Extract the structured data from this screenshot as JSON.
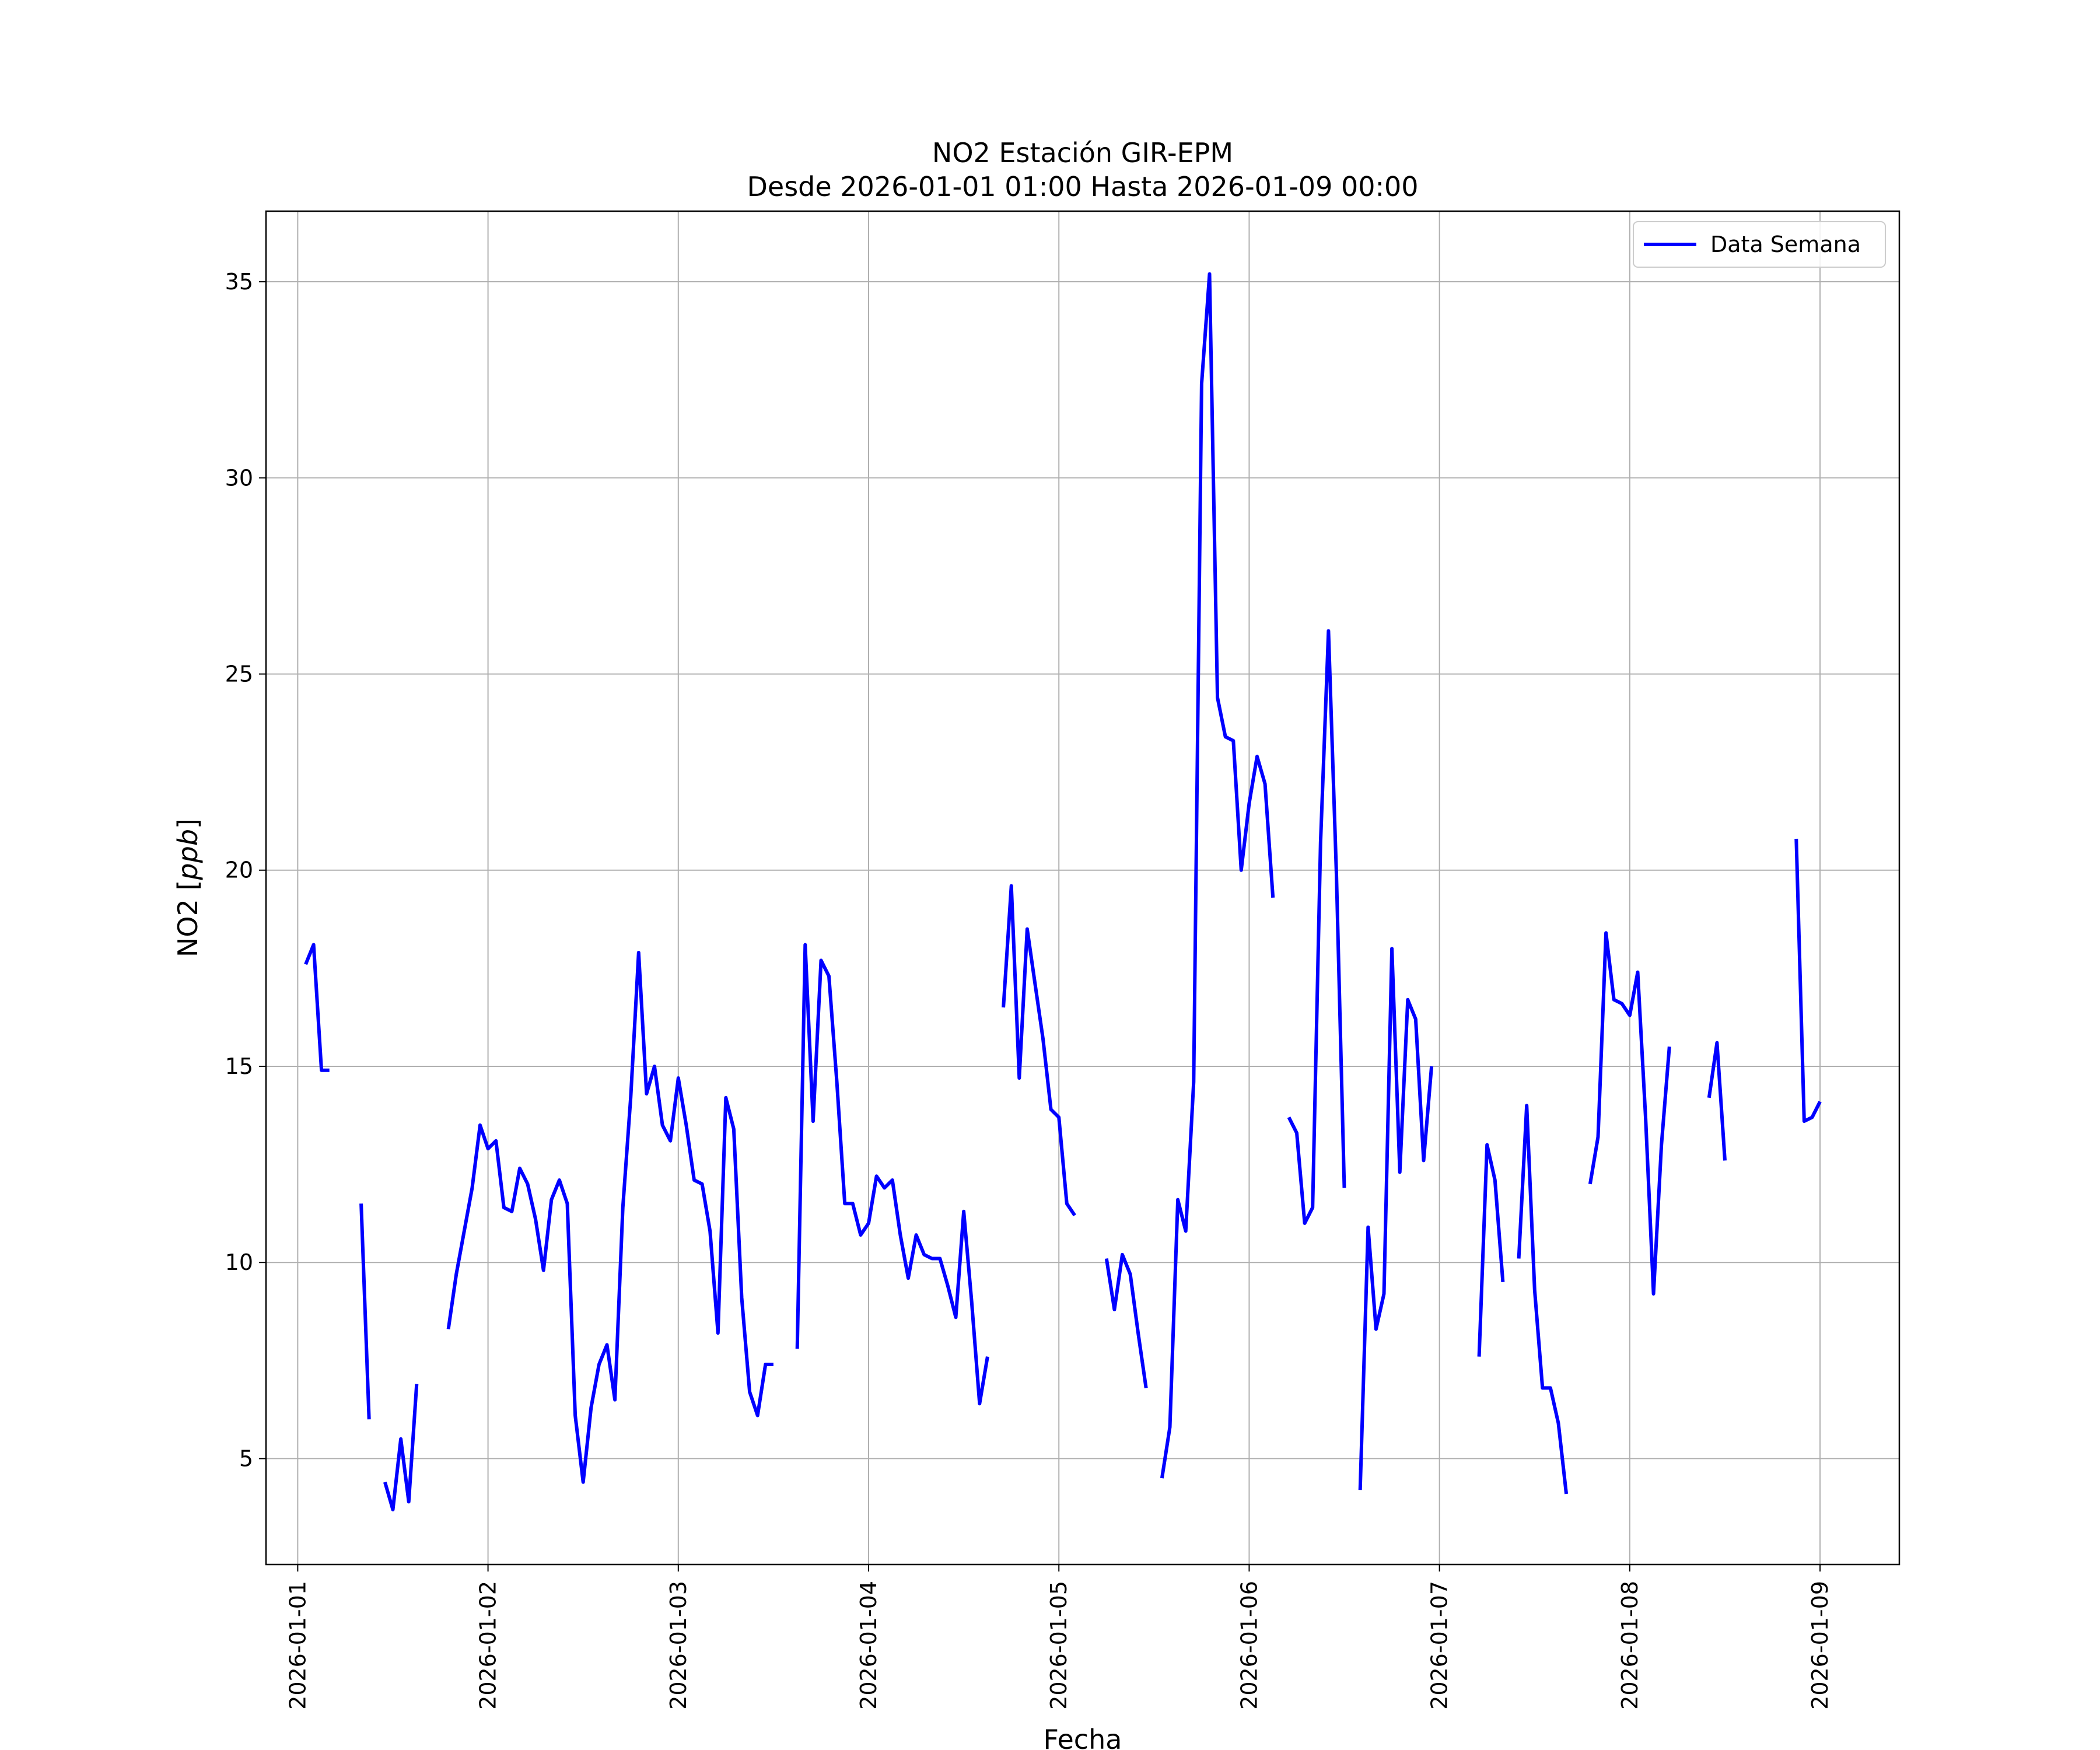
{
  "chart_data": {
    "type": "line",
    "title": "NO2 Estación GIR-EPM",
    "subtitle": "Desde 2026-01-01 01:00 Hasta 2026-01-09 00:00",
    "xlabel": "Fecha",
    "ylabel_main": "NO2 [",
    "ylabel_unit": "ppb",
    "ylabel_close": "]",
    "x_range": [
      "2025-12-31T20:00",
      "2026-01-09T10:00"
    ],
    "ylim": [
      2.3,
      36.8
    ],
    "x_ticks": [
      "2026-01-01",
      "2026-01-02",
      "2026-01-03",
      "2026-01-04",
      "2026-01-05",
      "2026-01-06",
      "2026-01-07",
      "2026-01-08",
      "2026-01-09"
    ],
    "y_ticks": [
      5,
      10,
      15,
      20,
      25,
      30,
      35
    ],
    "grid": true,
    "legend_position": "top-right",
    "series": [
      {
        "name": "Data Semana",
        "color": "#0000ff",
        "points": [
          [
            "2026-01-01T01:00",
            17.6
          ],
          [
            "2026-01-01T02:00",
            18.1
          ],
          [
            "2026-01-01T03:00",
            14.9
          ],
          [
            "2026-01-01T04:00",
            14.9
          ],
          [
            "2026-01-01T05:00",
            null
          ],
          [
            "2026-01-01T06:00",
            null
          ],
          [
            "2026-01-01T07:00",
            null
          ],
          [
            "2026-01-01T08:00",
            11.5
          ],
          [
            "2026-01-01T09:00",
            6.0
          ],
          [
            "2026-01-01T10:00",
            null
          ],
          [
            "2026-01-01T11:00",
            4.4
          ],
          [
            "2026-01-01T12:00",
            3.7
          ],
          [
            "2026-01-01T13:00",
            5.5
          ],
          [
            "2026-01-01T14:00",
            3.9
          ],
          [
            "2026-01-01T15:00",
            6.9
          ],
          [
            "2026-01-01T16:00",
            null
          ],
          [
            "2026-01-01T17:00",
            null
          ],
          [
            "2026-01-01T18:00",
            null
          ],
          [
            "2026-01-01T19:00",
            8.3
          ],
          [
            "2026-01-01T20:00",
            9.7
          ],
          [
            "2026-01-01T21:00",
            10.8
          ],
          [
            "2026-01-01T22:00",
            11.9
          ],
          [
            "2026-01-01T23:00",
            13.5
          ],
          [
            "2026-01-02T00:00",
            12.9
          ],
          [
            "2026-01-02T01:00",
            13.1
          ],
          [
            "2026-01-02T02:00",
            11.4
          ],
          [
            "2026-01-02T03:00",
            11.3
          ],
          [
            "2026-01-02T04:00",
            12.4
          ],
          [
            "2026-01-02T05:00",
            12.0
          ],
          [
            "2026-01-02T06:00",
            11.1
          ],
          [
            "2026-01-02T07:00",
            9.8
          ],
          [
            "2026-01-02T08:00",
            11.6
          ],
          [
            "2026-01-02T09:00",
            12.1
          ],
          [
            "2026-01-02T10:00",
            11.5
          ],
          [
            "2026-01-02T11:00",
            6.1
          ],
          [
            "2026-01-02T12:00",
            4.4
          ],
          [
            "2026-01-02T13:00",
            6.3
          ],
          [
            "2026-01-02T14:00",
            7.4
          ],
          [
            "2026-01-02T15:00",
            7.9
          ],
          [
            "2026-01-02T16:00",
            6.5
          ],
          [
            "2026-01-02T17:00",
            11.4
          ],
          [
            "2026-01-02T18:00",
            14.2
          ],
          [
            "2026-01-02T19:00",
            17.9
          ],
          [
            "2026-01-02T20:00",
            14.3
          ],
          [
            "2026-01-02T21:00",
            15.0
          ],
          [
            "2026-01-02T22:00",
            13.5
          ],
          [
            "2026-01-02T23:00",
            13.1
          ],
          [
            "2026-01-03T00:00",
            14.7
          ],
          [
            "2026-01-03T01:00",
            13.5
          ],
          [
            "2026-01-03T02:00",
            12.1
          ],
          [
            "2026-01-03T03:00",
            12.0
          ],
          [
            "2026-01-03T04:00",
            10.8
          ],
          [
            "2026-01-03T05:00",
            8.2
          ],
          [
            "2026-01-03T06:00",
            14.2
          ],
          [
            "2026-01-03T07:00",
            13.4
          ],
          [
            "2026-01-03T08:00",
            9.1
          ],
          [
            "2026-01-03T09:00",
            6.7
          ],
          [
            "2026-01-03T10:00",
            6.1
          ],
          [
            "2026-01-03T11:00",
            7.4
          ],
          [
            "2026-01-03T12:00",
            7.4
          ],
          [
            "2026-01-03T13:00",
            null
          ],
          [
            "2026-01-03T14:00",
            null
          ],
          [
            "2026-01-03T15:00",
            7.8
          ],
          [
            "2026-01-03T16:00",
            18.1
          ],
          [
            "2026-01-03T17:00",
            13.6
          ],
          [
            "2026-01-03T18:00",
            17.7
          ],
          [
            "2026-01-03T19:00",
            17.3
          ],
          [
            "2026-01-03T20:00",
            14.6
          ],
          [
            "2026-01-03T21:00",
            11.5
          ],
          [
            "2026-01-03T22:00",
            11.5
          ],
          [
            "2026-01-03T23:00",
            10.7
          ],
          [
            "2026-01-04T00:00",
            11.0
          ],
          [
            "2026-01-04T01:00",
            12.2
          ],
          [
            "2026-01-04T02:00",
            11.9
          ],
          [
            "2026-01-04T03:00",
            12.1
          ],
          [
            "2026-01-04T04:00",
            10.7
          ],
          [
            "2026-01-04T05:00",
            9.6
          ],
          [
            "2026-01-04T06:00",
            10.7
          ],
          [
            "2026-01-04T07:00",
            10.2
          ],
          [
            "2026-01-04T08:00",
            10.1
          ],
          [
            "2026-01-04T09:00",
            10.1
          ],
          [
            "2026-01-04T10:00",
            9.4
          ],
          [
            "2026-01-04T11:00",
            8.6
          ],
          [
            "2026-01-04T12:00",
            11.3
          ],
          [
            "2026-01-04T13:00",
            9.0
          ],
          [
            "2026-01-04T14:00",
            6.4
          ],
          [
            "2026-01-04T15:00",
            7.6
          ],
          [
            "2026-01-04T16:00",
            null
          ],
          [
            "2026-01-04T17:00",
            16.5
          ],
          [
            "2026-01-04T18:00",
            19.6
          ],
          [
            "2026-01-04T19:00",
            14.7
          ],
          [
            "2026-01-04T20:00",
            18.5
          ],
          [
            "2026-01-04T21:00",
            17.1
          ],
          [
            "2026-01-04T22:00",
            15.7
          ],
          [
            "2026-01-04T23:00",
            13.9
          ],
          [
            "2026-01-05T00:00",
            13.7
          ],
          [
            "2026-01-05T01:00",
            11.5
          ],
          [
            "2026-01-05T02:00",
            11.2
          ],
          [
            "2026-01-05T03:00",
            null
          ],
          [
            "2026-01-05T04:00",
            null
          ],
          [
            "2026-01-05T05:00",
            null
          ],
          [
            "2026-01-05T06:00",
            10.1
          ],
          [
            "2026-01-05T07:00",
            8.8
          ],
          [
            "2026-01-05T08:00",
            10.2
          ],
          [
            "2026-01-05T09:00",
            9.7
          ],
          [
            "2026-01-05T10:00",
            8.2
          ],
          [
            "2026-01-05T11:00",
            6.8
          ],
          [
            "2026-01-05T12:00",
            null
          ],
          [
            "2026-01-05T13:00",
            4.5
          ],
          [
            "2026-01-05T14:00",
            5.8
          ],
          [
            "2026-01-05T15:00",
            11.6
          ],
          [
            "2026-01-05T16:00",
            10.8
          ],
          [
            "2026-01-05T17:00",
            14.6
          ],
          [
            "2026-01-05T18:00",
            32.4
          ],
          [
            "2026-01-05T19:00",
            35.2
          ],
          [
            "2026-01-05T20:00",
            24.4
          ],
          [
            "2026-01-05T21:00",
            23.4
          ],
          [
            "2026-01-05T22:00",
            23.3
          ],
          [
            "2026-01-05T23:00",
            20.0
          ],
          [
            "2026-01-06T00:00",
            21.7
          ],
          [
            "2026-01-06T01:00",
            22.9
          ],
          [
            "2026-01-06T02:00",
            22.2
          ],
          [
            "2026-01-06T03:00",
            19.3
          ],
          [
            "2026-01-06T04:00",
            null
          ],
          [
            "2026-01-06T05:00",
            13.7
          ],
          [
            "2026-01-06T06:00",
            13.3
          ],
          [
            "2026-01-06T07:00",
            11.0
          ],
          [
            "2026-01-06T08:00",
            11.4
          ],
          [
            "2026-01-06T09:00",
            20.7
          ],
          [
            "2026-01-06T10:00",
            26.1
          ],
          [
            "2026-01-06T11:00",
            19.9
          ],
          [
            "2026-01-06T12:00",
            11.9
          ],
          [
            "2026-01-06T13:00",
            null
          ],
          [
            "2026-01-06T14:00",
            4.2
          ],
          [
            "2026-01-06T15:00",
            10.9
          ],
          [
            "2026-01-06T16:00",
            8.3
          ],
          [
            "2026-01-06T17:00",
            9.2
          ],
          [
            "2026-01-06T18:00",
            18.0
          ],
          [
            "2026-01-06T19:00",
            12.3
          ],
          [
            "2026-01-06T20:00",
            16.7
          ],
          [
            "2026-01-06T21:00",
            16.2
          ],
          [
            "2026-01-06T22:00",
            12.6
          ],
          [
            "2026-01-06T23:00",
            15.0
          ],
          [
            "2026-01-07T00:00",
            null
          ],
          [
            "2026-01-07T01:00",
            null
          ],
          [
            "2026-01-07T02:00",
            null
          ],
          [
            "2026-01-07T03:00",
            null
          ],
          [
            "2026-01-07T04:00",
            null
          ],
          [
            "2026-01-07T05:00",
            7.6
          ],
          [
            "2026-01-07T06:00",
            13.0
          ],
          [
            "2026-01-07T07:00",
            12.1
          ],
          [
            "2026-01-07T08:00",
            9.5
          ],
          [
            "2026-01-07T09:00",
            null
          ],
          [
            "2026-01-07T10:00",
            10.1
          ],
          [
            "2026-01-07T11:00",
            14.0
          ],
          [
            "2026-01-07T12:00",
            9.3
          ],
          [
            "2026-01-07T13:00",
            6.8
          ],
          [
            "2026-01-07T14:00",
            6.8
          ],
          [
            "2026-01-07T15:00",
            5.9
          ],
          [
            "2026-01-07T16:00",
            4.1
          ],
          [
            "2026-01-07T17:00",
            null
          ],
          [
            "2026-01-07T18:00",
            null
          ],
          [
            "2026-01-07T19:00",
            12.0
          ],
          [
            "2026-01-07T20:00",
            13.2
          ],
          [
            "2026-01-07T21:00",
            18.4
          ],
          [
            "2026-01-07T22:00",
            16.7
          ],
          [
            "2026-01-07T23:00",
            16.6
          ],
          [
            "2026-01-08T00:00",
            16.3
          ],
          [
            "2026-01-08T01:00",
            17.4
          ],
          [
            "2026-01-08T02:00",
            13.7
          ],
          [
            "2026-01-08T03:00",
            9.2
          ],
          [
            "2026-01-08T04:00",
            13.0
          ],
          [
            "2026-01-08T05:00",
            15.5
          ],
          [
            "2026-01-08T06:00",
            null
          ],
          [
            "2026-01-08T07:00",
            null
          ],
          [
            "2026-01-08T08:00",
            null
          ],
          [
            "2026-01-08T09:00",
            null
          ],
          [
            "2026-01-08T10:00",
            14.2
          ],
          [
            "2026-01-08T11:00",
            15.6
          ],
          [
            "2026-01-08T12:00",
            12.6
          ],
          [
            "2026-01-08T13:00",
            null
          ],
          [
            "2026-01-08T14:00",
            null
          ],
          [
            "2026-01-08T15:00",
            null
          ],
          [
            "2026-01-08T16:00",
            null
          ],
          [
            "2026-01-08T17:00",
            null
          ],
          [
            "2026-01-08T18:00",
            null
          ],
          [
            "2026-01-08T19:00",
            null
          ],
          [
            "2026-01-08T20:00",
            null
          ],
          [
            "2026-01-08T21:00",
            20.8
          ],
          [
            "2026-01-08T22:00",
            13.6
          ],
          [
            "2026-01-08T23:00",
            13.7
          ],
          [
            "2026-01-09T00:00",
            14.1
          ]
        ]
      }
    ]
  }
}
